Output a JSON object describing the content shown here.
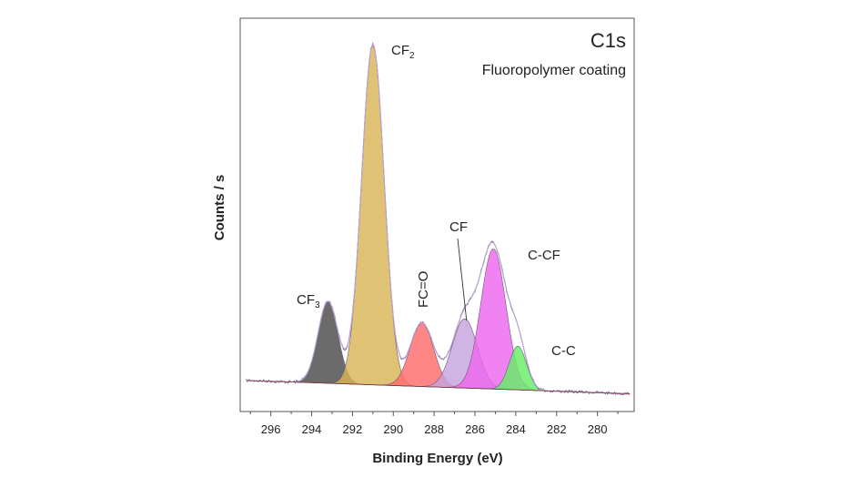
{
  "chart_data": {
    "type": "area",
    "title": "C1s",
    "subtitle": "Fluoropolymer coating",
    "xlabel": "Binding Energy (eV)",
    "ylabel": "Counts / s",
    "x_reversed": true,
    "xlim": [
      297.5,
      278.2
    ],
    "xticks": [
      296,
      294,
      292,
      290,
      288,
      286,
      284,
      282,
      280
    ],
    "ylim": [
      0,
      1
    ],
    "grid": false,
    "baseline": {
      "at_297": 0.035,
      "at_279": 0.0
    },
    "peaks": [
      {
        "name": "CF",
        "sub": "3",
        "center": 293.2,
        "height": 0.225,
        "fwhm": 1.15,
        "color": "#4a4a4a"
      },
      {
        "name": "CF",
        "sub": "2",
        "center": 291.0,
        "height": 0.935,
        "fwhm": 1.3,
        "color": "#d8b455"
      },
      {
        "name": "FC=O",
        "sub": "",
        "center": 288.6,
        "height": 0.175,
        "fwhm": 1.35,
        "color": "#ff6b6b"
      },
      {
        "name": "CF",
        "sub": "",
        "center": 286.5,
        "height": 0.19,
        "fwhm": 1.45,
        "color": "#c4a4de"
      },
      {
        "name": "C-CF",
        "sub": "",
        "center": 285.1,
        "height": 0.385,
        "fwhm": 1.45,
        "color": "#ee66ee"
      },
      {
        "name": "C-C",
        "sub": "",
        "center": 283.9,
        "height": 0.12,
        "fwhm": 1.0,
        "color": "#66ee66"
      }
    ],
    "envelope_color": "#7b5c9c"
  }
}
